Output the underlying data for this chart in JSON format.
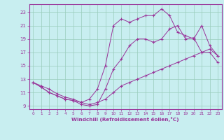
{
  "xlabel": "Windchill (Refroidissement éolien,°C)",
  "background_color": "#c8eef0",
  "grid_color": "#99ccbb",
  "line_color": "#993399",
  "xlim": [
    -0.5,
    23.5
  ],
  "ylim": [
    8.5,
    24.2
  ],
  "xticks": [
    0,
    1,
    2,
    3,
    4,
    5,
    6,
    7,
    8,
    9,
    10,
    11,
    12,
    13,
    14,
    15,
    16,
    17,
    18,
    19,
    20,
    21,
    22,
    23
  ],
  "yticks": [
    9,
    11,
    13,
    15,
    17,
    19,
    21,
    23
  ],
  "line1_x": [
    0,
    1,
    2,
    3,
    4,
    5,
    6,
    7,
    8,
    9,
    10,
    11,
    12,
    13,
    14,
    15,
    16,
    17,
    18,
    19,
    20,
    21,
    22,
    23
  ],
  "line1_y": [
    12.5,
    12.0,
    11.5,
    10.8,
    10.3,
    10.0,
    9.5,
    9.2,
    9.5,
    10.0,
    11.0,
    12.0,
    12.5,
    13.0,
    13.5,
    14.0,
    14.5,
    15.0,
    15.5,
    16.0,
    16.5,
    17.0,
    17.0,
    15.5
  ],
  "line2_x": [
    0,
    1,
    2,
    3,
    4,
    5,
    6,
    7,
    8,
    9,
    10,
    11,
    12,
    13,
    14,
    15,
    16,
    17,
    18,
    19,
    20,
    21,
    22,
    23
  ],
  "line2_y": [
    12.5,
    11.8,
    11.0,
    10.5,
    10.0,
    9.8,
    9.2,
    9.0,
    9.2,
    11.5,
    14.5,
    16.0,
    18.0,
    19.0,
    19.0,
    18.5,
    19.0,
    20.5,
    21.0,
    19.0,
    19.2,
    17.0,
    17.5,
    16.5
  ],
  "line3_x": [
    0,
    1,
    2,
    3,
    4,
    5,
    6,
    7,
    8,
    9,
    10,
    11,
    12,
    13,
    14,
    15,
    16,
    17,
    18,
    19,
    20,
    21,
    22,
    23
  ],
  "line3_y": [
    12.5,
    11.8,
    11.0,
    10.5,
    10.0,
    9.8,
    9.5,
    10.0,
    11.5,
    15.0,
    21.0,
    22.0,
    21.5,
    22.0,
    22.5,
    22.5,
    23.5,
    22.5,
    20.0,
    19.5,
    19.0,
    21.0,
    18.0,
    16.5
  ]
}
